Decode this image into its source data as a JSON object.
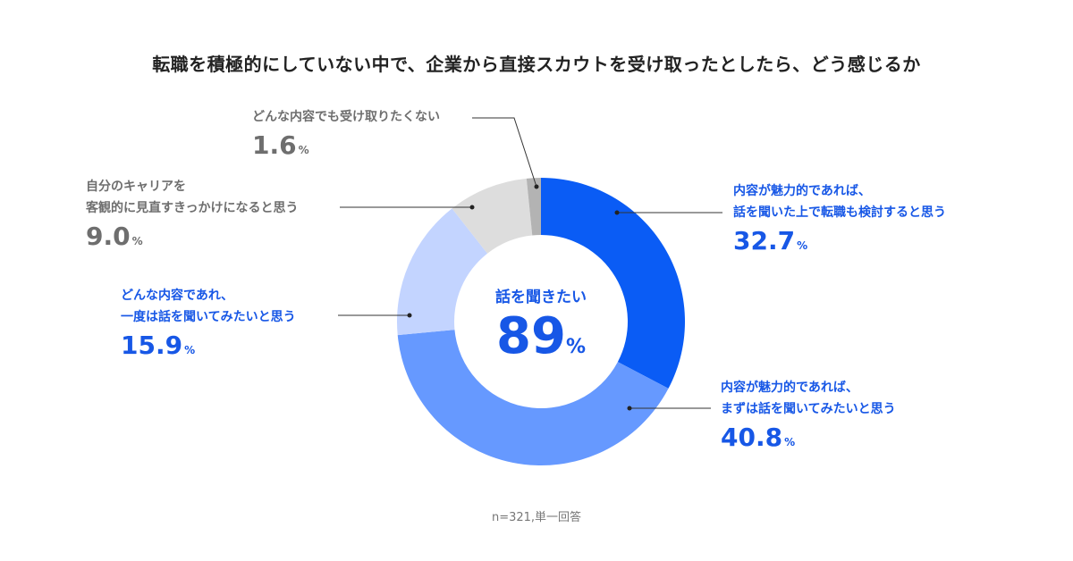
{
  "title": "転職を積極的にしていない中で、企業から直接スカウトを受け取ったとしたら、どう感じるか",
  "note": "n=321,単一回答",
  "center": {
    "label": "話を聞きたい",
    "value": "89",
    "unit": "%"
  },
  "chart_data": {
    "type": "pie",
    "donut": true,
    "title": "転職を積極的にしていない中で、企業から直接スカウトを受け取ったとしたら、どう感じるか",
    "unit": "%",
    "slices": [
      {
        "lines": [
          "内容が魅力的であれば、",
          "話を聞いた上で転職も検討すると思う"
        ],
        "value": 32.7,
        "display": "32.7",
        "color": "#0a5cf5",
        "text_color": "#1757e6"
      },
      {
        "lines": [
          "内容が魅力的であれば、",
          "まずは話を聞いてみたいと思う"
        ],
        "value": 40.8,
        "display": "40.8",
        "color": "#6699ff",
        "text_color": "#1757e6"
      },
      {
        "lines": [
          "どんな内容であれ、",
          "一度は話を聞いてみたいと思う"
        ],
        "value": 15.9,
        "display": "15.9",
        "color": "#c3d4ff",
        "text_color": "#1757e6"
      },
      {
        "lines": [
          "自分のキャリアを",
          "客観的に見直すきっかけになると思う"
        ],
        "value": 9.0,
        "display": "9.0",
        "color": "#dddddd",
        "text_color": "#6e6e6e"
      },
      {
        "lines": [
          "どんな内容でも受け取りたくない"
        ],
        "value": 1.6,
        "display": "1.6",
        "color": "#b3b3b3",
        "text_color": "#6e6e6e"
      }
    ]
  }
}
